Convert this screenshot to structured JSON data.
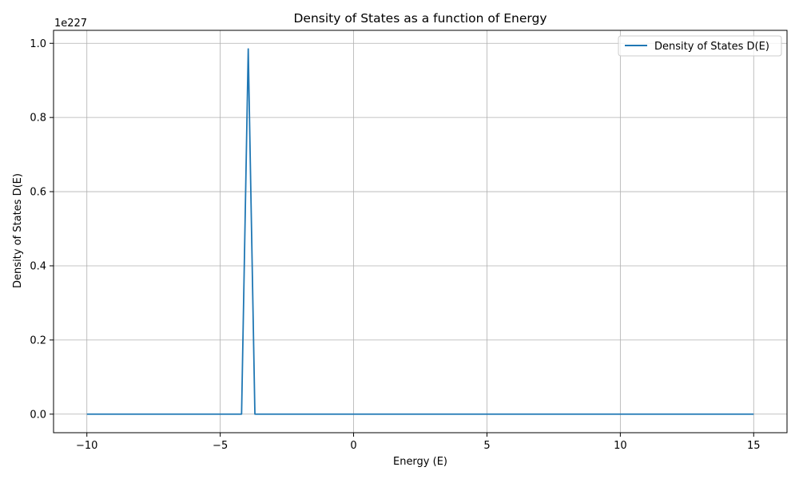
{
  "chart_data": {
    "type": "line",
    "title": "Density of States as a function of Energy",
    "xlabel": "Energy (E)",
    "ylabel": "Density of States D(E)",
    "y_offset_text": "1e227",
    "xlim": [
      -11.25,
      16.25
    ],
    "ylim": [
      -0.05,
      1.035
    ],
    "x_ticks": [
      -10,
      -5,
      0,
      5,
      10,
      15
    ],
    "x_tick_labels": [
      "−10",
      "−5",
      "0",
      "5",
      "10",
      "15"
    ],
    "y_ticks": [
      0.0,
      0.2,
      0.4,
      0.6,
      0.8,
      1.0
    ],
    "y_tick_labels": [
      "0.0",
      "0.2",
      "0.4",
      "0.6",
      "0.8",
      "1.0"
    ],
    "grid": true,
    "legend_position": "top-right",
    "series": [
      {
        "name": "Density of States D(E)",
        "color": "#1f77b4",
        "x": [
          -10,
          -4.2,
          -3.95,
          -3.7,
          15
        ],
        "y": [
          0,
          0,
          0.985,
          0,
          0
        ]
      }
    ]
  }
}
